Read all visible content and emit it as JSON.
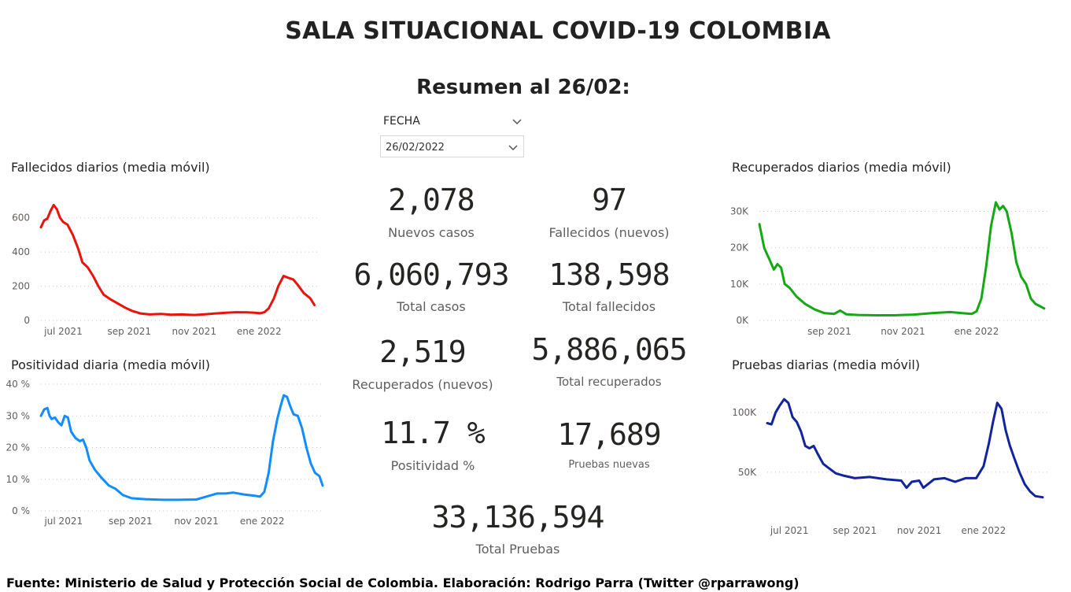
{
  "header": {
    "title": "SALA SITUACIONAL COVID-19 COLOMBIA",
    "subtitle": "Resumen al 26/02:"
  },
  "slicer": {
    "label": "FECHA",
    "value": "26/02/2022"
  },
  "kpis": {
    "nuevos_casos": {
      "value": "2,078",
      "label": "Nuevos casos"
    },
    "fallecidos_nuevos": {
      "value": "97",
      "label": "Fallecidos (nuevos)"
    },
    "total_casos": {
      "value": "6,060,793",
      "label": "Total casos"
    },
    "total_fallecidos": {
      "value": "138,598",
      "label": "Total fallecidos"
    },
    "recuperados_nuevos": {
      "value": "2,519",
      "label": "Recuperados (nuevos)"
    },
    "total_recuperados": {
      "value": "5,886,065",
      "label": "Total recuperados"
    },
    "positividad": {
      "value": "11.7 %",
      "label": "Positividad %"
    },
    "pruebas_nuevas": {
      "value": "17,689",
      "label": "Pruebas nuevas"
    },
    "total_pruebas": {
      "value": "33,136,594",
      "label": "Total Pruebas"
    }
  },
  "footer": {
    "text": "Fuente: Ministerio de Salud y Protección Social de Colombia. Elaboración: Rodrigo Parra (Twitter @rparrawong)"
  },
  "chart_data": [
    {
      "id": "fallecidos",
      "type": "line",
      "title": "Fallecidos diarios (media móvil)",
      "color": "#e8140c",
      "x_range": [
        "2021-06-10",
        "2022-02-26"
      ],
      "x_ticks": [
        {
          "date": "2021-07-01",
          "label": "jul 2021"
        },
        {
          "date": "2021-09-01",
          "label": "sep 2021"
        },
        {
          "date": "2021-11-01",
          "label": "nov 2021"
        },
        {
          "date": "2022-01-01",
          "label": "ene 2022"
        }
      ],
      "y_ticks": [
        {
          "value": 0,
          "label": "0"
        },
        {
          "value": 200,
          "label": "200"
        },
        {
          "value": 400,
          "label": "400"
        },
        {
          "value": 600,
          "label": "600"
        }
      ],
      "ylim": [
        0,
        700
      ],
      "grid": true,
      "series": [
        {
          "points": [
            [
              "2021-06-10",
              545
            ],
            [
              "2021-06-13",
              585
            ],
            [
              "2021-06-16",
              595
            ],
            [
              "2021-06-19",
              640
            ],
            [
              "2021-06-22",
              675
            ],
            [
              "2021-06-25",
              650
            ],
            [
              "2021-06-28",
              600
            ],
            [
              "2021-07-01",
              575
            ],
            [
              "2021-07-05",
              560
            ],
            [
              "2021-07-10",
              500
            ],
            [
              "2021-07-15",
              420
            ],
            [
              "2021-07-19",
              340
            ],
            [
              "2021-07-24",
              310
            ],
            [
              "2021-07-29",
              260
            ],
            [
              "2021-08-03",
              200
            ],
            [
              "2021-08-08",
              150
            ],
            [
              "2021-08-14",
              125
            ],
            [
              "2021-08-21",
              100
            ],
            [
              "2021-08-28",
              75
            ],
            [
              "2021-09-04",
              55
            ],
            [
              "2021-09-12",
              40
            ],
            [
              "2021-09-20",
              35
            ],
            [
              "2021-10-01",
              38
            ],
            [
              "2021-10-10",
              33
            ],
            [
              "2021-10-20",
              35
            ],
            [
              "2021-11-01",
              32
            ],
            [
              "2021-11-10",
              35
            ],
            [
              "2021-11-20",
              40
            ],
            [
              "2021-12-01",
              45
            ],
            [
              "2021-12-10",
              48
            ],
            [
              "2021-12-20",
              47
            ],
            [
              "2021-12-28",
              45
            ],
            [
              "2022-01-02",
              42
            ],
            [
              "2022-01-06",
              48
            ],
            [
              "2022-01-10",
              70
            ],
            [
              "2022-01-15",
              130
            ],
            [
              "2022-01-19",
              200
            ],
            [
              "2022-01-24",
              260
            ],
            [
              "2022-01-28",
              250
            ],
            [
              "2022-02-02",
              240
            ],
            [
              "2022-02-06",
              210
            ],
            [
              "2022-02-12",
              160
            ],
            [
              "2022-02-18",
              130
            ],
            [
              "2022-02-22",
              90
            ]
          ]
        }
      ]
    },
    {
      "id": "positividad",
      "type": "line",
      "title": "Positividad diaria (media móvil)",
      "color": "#118dff",
      "x_range": [
        "2021-06-10",
        "2022-02-26"
      ],
      "x_ticks": [
        {
          "date": "2021-07-01",
          "label": "jul 2021"
        },
        {
          "date": "2021-09-01",
          "label": "sep 2021"
        },
        {
          "date": "2021-11-01",
          "label": "nov 2021"
        },
        {
          "date": "2022-01-01",
          "label": "ene 2022"
        }
      ],
      "y_ticks": [
        {
          "value": 0,
          "label": "0 %"
        },
        {
          "value": 10,
          "label": "10 %"
        },
        {
          "value": 20,
          "label": "20 %"
        },
        {
          "value": 30,
          "label": "30 %"
        },
        {
          "value": 40,
          "label": "40 %"
        }
      ],
      "ylim": [
        0,
        40
      ],
      "grid": true,
      "series": [
        {
          "points": [
            [
              "2021-06-10",
              30
            ],
            [
              "2021-06-13",
              32
            ],
            [
              "2021-06-16",
              32.5
            ],
            [
              "2021-06-18",
              30
            ],
            [
              "2021-06-20",
              29
            ],
            [
              "2021-06-23",
              29.5
            ],
            [
              "2021-06-26",
              28
            ],
            [
              "2021-06-29",
              27
            ],
            [
              "2021-07-02",
              30
            ],
            [
              "2021-07-05",
              29.5
            ],
            [
              "2021-07-08",
              25
            ],
            [
              "2021-07-12",
              23
            ],
            [
              "2021-07-16",
              22
            ],
            [
              "2021-07-19",
              22.5
            ],
            [
              "2021-07-22",
              20
            ],
            [
              "2021-07-25",
              16
            ],
            [
              "2021-07-30",
              13
            ],
            [
              "2021-08-05",
              10.5
            ],
            [
              "2021-08-12",
              8
            ],
            [
              "2021-08-18",
              7
            ],
            [
              "2021-08-25",
              5
            ],
            [
              "2021-09-02",
              4
            ],
            [
              "2021-09-15",
              3.7
            ],
            [
              "2021-10-01",
              3.5
            ],
            [
              "2021-10-15",
              3.5
            ],
            [
              "2021-11-01",
              3.6
            ],
            [
              "2021-11-10",
              4.5
            ],
            [
              "2021-11-20",
              5.5
            ],
            [
              "2021-11-28",
              5.5
            ],
            [
              "2021-12-05",
              5.8
            ],
            [
              "2021-12-15",
              5.2
            ],
            [
              "2021-12-25",
              4.8
            ],
            [
              "2021-12-30",
              4.5
            ],
            [
              "2022-01-03",
              6
            ],
            [
              "2022-01-07",
              12
            ],
            [
              "2022-01-11",
              22
            ],
            [
              "2022-01-15",
              29
            ],
            [
              "2022-01-18",
              33
            ],
            [
              "2022-01-21",
              36.5
            ],
            [
              "2022-01-24",
              36
            ],
            [
              "2022-01-27",
              33
            ],
            [
              "2022-01-30",
              30.5
            ],
            [
              "2022-02-03",
              30
            ],
            [
              "2022-02-07",
              26
            ],
            [
              "2022-02-11",
              20
            ],
            [
              "2022-02-15",
              15
            ],
            [
              "2022-02-19",
              12
            ],
            [
              "2022-02-23",
              11
            ],
            [
              "2022-02-26",
              8
            ]
          ]
        }
      ]
    },
    {
      "id": "recuperados",
      "type": "line",
      "title": "Recuperados diarios (media móvil)",
      "color": "#14a814",
      "x_range": [
        "2021-07-05",
        "2022-03-02"
      ],
      "x_ticks": [
        {
          "date": "2021-09-01",
          "label": "sep 2021"
        },
        {
          "date": "2021-11-01",
          "label": "nov 2021"
        },
        {
          "date": "2022-01-01",
          "label": "ene 2022"
        }
      ],
      "y_ticks": [
        {
          "value": 0,
          "label": "0K"
        },
        {
          "value": 10000,
          "label": "10K"
        },
        {
          "value": 20000,
          "label": "20K"
        },
        {
          "value": 30000,
          "label": "30K"
        }
      ],
      "ylim": [
        0,
        32500
      ],
      "grid": true,
      "series": [
        {
          "points": [
            [
              "2021-07-05",
              26500
            ],
            [
              "2021-07-09",
              20000
            ],
            [
              "2021-07-13",
              17000
            ],
            [
              "2021-07-17",
              14000
            ],
            [
              "2021-07-20",
              15500
            ],
            [
              "2021-07-23",
              14500
            ],
            [
              "2021-07-26",
              10000
            ],
            [
              "2021-07-30",
              9000
            ],
            [
              "2021-08-05",
              6500
            ],
            [
              "2021-08-12",
              4500
            ],
            [
              "2021-08-20",
              3000
            ],
            [
              "2021-08-28",
              2000
            ],
            [
              "2021-09-05",
              1800
            ],
            [
              "2021-09-10",
              2700
            ],
            [
              "2021-09-15",
              1700
            ],
            [
              "2021-09-25",
              1500
            ],
            [
              "2021-10-10",
              1400
            ],
            [
              "2021-10-25",
              1400
            ],
            [
              "2021-11-10",
              1600
            ],
            [
              "2021-11-25",
              2000
            ],
            [
              "2021-12-10",
              2300
            ],
            [
              "2021-12-20",
              2000
            ],
            [
              "2021-12-28",
              1800
            ],
            [
              "2022-01-01",
              2500
            ],
            [
              "2022-01-05",
              6000
            ],
            [
              "2022-01-09",
              15000
            ],
            [
              "2022-01-13",
              26000
            ],
            [
              "2022-01-17",
              32500
            ],
            [
              "2022-01-20",
              30500
            ],
            [
              "2022-01-23",
              31500
            ],
            [
              "2022-01-26",
              30000
            ],
            [
              "2022-01-30",
              24000
            ],
            [
              "2022-02-03",
              16000
            ],
            [
              "2022-02-07",
              12000
            ],
            [
              "2022-02-11",
              10000
            ],
            [
              "2022-02-15",
              6000
            ],
            [
              "2022-02-19",
              4500
            ],
            [
              "2022-02-22",
              4000
            ],
            [
              "2022-02-26",
              3300
            ]
          ]
        }
      ]
    },
    {
      "id": "pruebas",
      "type": "line",
      "title": "Pruebas diarias (media móvil)",
      "color": "#12239e",
      "x_range": [
        "2021-06-10",
        "2022-03-04"
      ],
      "x_ticks": [
        {
          "date": "2021-07-01",
          "label": "jul 2021"
        },
        {
          "date": "2021-09-01",
          "label": "sep 2021"
        },
        {
          "date": "2021-11-01",
          "label": "nov 2021"
        },
        {
          "date": "2022-01-01",
          "label": "ene 2022"
        }
      ],
      "y_ticks": [
        {
          "value": 50000,
          "label": "50K"
        },
        {
          "value": 100000,
          "label": "100K"
        }
      ],
      "ylim": [
        15000,
        117000
      ],
      "grid": true,
      "series": [
        {
          "points": [
            [
              "2021-06-10",
              91000
            ],
            [
              "2021-06-14",
              90000
            ],
            [
              "2021-06-18",
              100000
            ],
            [
              "2021-06-22",
              106000
            ],
            [
              "2021-06-26",
              111000
            ],
            [
              "2021-06-30",
              108000
            ],
            [
              "2021-07-04",
              96000
            ],
            [
              "2021-07-08",
              92000
            ],
            [
              "2021-07-12",
              84000
            ],
            [
              "2021-07-16",
              72000
            ],
            [
              "2021-07-20",
              70000
            ],
            [
              "2021-07-24",
              72000
            ],
            [
              "2021-07-28",
              65000
            ],
            [
              "2021-08-02",
              57000
            ],
            [
              "2021-08-08",
              53000
            ],
            [
              "2021-08-14",
              49000
            ],
            [
              "2021-08-22",
              47000
            ],
            [
              "2021-09-01",
              45000
            ],
            [
              "2021-09-15",
              46000
            ],
            [
              "2021-10-01",
              44000
            ],
            [
              "2021-10-15",
              43000
            ],
            [
              "2021-10-20",
              37000
            ],
            [
              "2021-10-25",
              42000
            ],
            [
              "2021-11-01",
              43000
            ],
            [
              "2021-11-05",
              37000
            ],
            [
              "2021-11-15",
              44000
            ],
            [
              "2021-11-25",
              45000
            ],
            [
              "2021-12-05",
              42000
            ],
            [
              "2021-12-15",
              45000
            ],
            [
              "2021-12-25",
              45000
            ],
            [
              "2022-01-01",
              55000
            ],
            [
              "2022-01-06",
              74000
            ],
            [
              "2022-01-10",
              92000
            ],
            [
              "2022-01-14",
              108000
            ],
            [
              "2022-01-18",
              103000
            ],
            [
              "2022-01-22",
              85000
            ],
            [
              "2022-01-26",
              72000
            ],
            [
              "2022-01-30",
              62000
            ],
            [
              "2022-02-04",
              50000
            ],
            [
              "2022-02-09",
              40000
            ],
            [
              "2022-02-14",
              34000
            ],
            [
              "2022-02-19",
              30000
            ],
            [
              "2022-02-26",
              29000
            ]
          ]
        }
      ]
    }
  ]
}
